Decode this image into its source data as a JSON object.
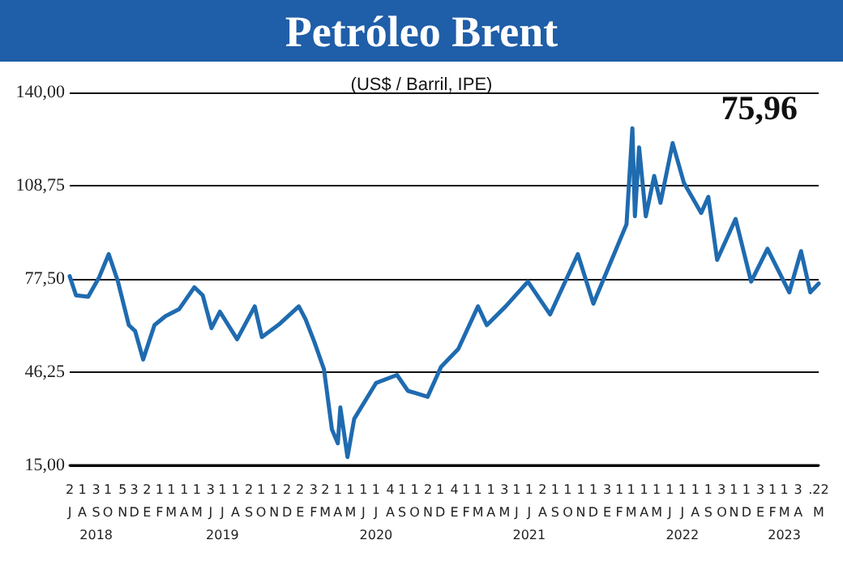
{
  "chart_data": {
    "type": "line",
    "title": "Petróleo Brent",
    "subtitle": "(US$ / Barril, IPE)",
    "annotations": [
      "75,96"
    ],
    "x": [
      "2018-07-02",
      "2018-07-17",
      "2018-08-15",
      "2018-09-10",
      "2018-10-03",
      "2018-10-25",
      "2018-11-20",
      "2018-12-05",
      "2018-12-24",
      "2019-01-20",
      "2019-02-15",
      "2019-03-20",
      "2019-04-25",
      "2019-05-15",
      "2019-06-05",
      "2019-06-25",
      "2019-08-05",
      "2019-09-16",
      "2019-10-03",
      "2019-11-15",
      "2019-12-30",
      "2020-01-15",
      "2020-02-05",
      "2020-02-28",
      "2020-03-18",
      "2020-04-01",
      "2020-04-07",
      "2020-04-24",
      "2020-05-10",
      "2020-07-01",
      "2020-08-20",
      "2020-09-15",
      "2020-11-01",
      "2020-12-03",
      "2021-01-13",
      "2021-03-01",
      "2021-03-22",
      "2021-05-06",
      "2021-06-28",
      "2021-08-20",
      "2021-10-25",
      "2021-12-01",
      "2022-02-18",
      "2022-03-04",
      "2022-03-10",
      "2022-03-20",
      "2022-04-05",
      "2022-04-25",
      "2022-05-10",
      "2022-06-08",
      "2022-07-05",
      "2022-08-15",
      "2022-09-01",
      "2022-09-22",
      "2022-11-05",
      "2022-12-12",
      "2023-01-20",
      "2023-03-13",
      "2023-04-10",
      "2023-05-02",
      "2023-05-22"
    ],
    "series": [
      {
        "color": "#1f6bb0",
        "values": [
          78.4,
          72,
          71.5,
          78,
          85.8,
          76.6,
          62,
          60,
          50.5,
          62,
          65,
          67.4,
          74.7,
          72,
          61,
          66.5,
          57.3,
          68.3,
          58,
          62.5,
          68.3,
          64,
          56.4,
          47.2,
          27,
          22.4,
          34.4,
          17.8,
          30.6,
          42.6,
          45.3,
          40,
          38,
          48,
          54,
          68.3,
          62,
          68.3,
          76.6,
          65.6,
          85.8,
          69.2,
          95.8,
          128,
          98.5,
          121.6,
          98.5,
          112,
          103,
          123,
          109.6,
          99.6,
          105,
          83.9,
          97.6,
          76.6,
          87.6,
          73,
          86.8,
          73,
          75.96
        ]
      }
    ],
    "xlim": [
      "2018-07-02",
      "2023-05-22"
    ],
    "xticks": [
      {
        "value": "2018-07-02",
        "label": "2\nJ"
      },
      {
        "value": "2018-08-01",
        "label": "1\nA"
      },
      {
        "value": "2018-09-03",
        "label": "3\nS\n2018"
      },
      {
        "value": "2018-10-01",
        "label": "1\nO"
      },
      {
        "value": "2018-11-05",
        "label": "5\nN"
      },
      {
        "value": "2018-12-03",
        "label": "3\nD"
      },
      {
        "value": "2019-01-02",
        "label": "2\nE"
      },
      {
        "value": "2019-02-01",
        "label": "1\nF"
      },
      {
        "value": "2019-03-01",
        "label": "1\nM"
      },
      {
        "value": "2019-04-01",
        "label": "1\nA"
      },
      {
        "value": "2019-05-01",
        "label": "1\nM"
      },
      {
        "value": "2019-06-03",
        "label": "3\nJ"
      },
      {
        "value": "2019-07-01",
        "label": "1\nJ\n2019"
      },
      {
        "value": "2019-08-01",
        "label": "1\nA"
      },
      {
        "value": "2019-09-02",
        "label": "2\nS"
      },
      {
        "value": "2019-10-01",
        "label": "1\nO"
      },
      {
        "value": "2019-11-01",
        "label": "1\nN"
      },
      {
        "value": "2019-12-02",
        "label": "2\nD"
      },
      {
        "value": "2020-01-02",
        "label": "2\nE"
      },
      {
        "value": "2020-02-03",
        "label": "3\nF"
      },
      {
        "value": "2020-03-02",
        "label": "2\nM"
      },
      {
        "value": "2020-04-01",
        "label": "1\nA"
      },
      {
        "value": "2020-05-01",
        "label": "1\nM"
      },
      {
        "value": "2020-06-01",
        "label": "1\nJ"
      },
      {
        "value": "2020-07-01",
        "label": "1\nJ\n2020"
      },
      {
        "value": "2020-08-04",
        "label": "4\nA"
      },
      {
        "value": "2020-09-01",
        "label": "1\nS"
      },
      {
        "value": "2020-10-01",
        "label": "1\nO"
      },
      {
        "value": "2020-11-02",
        "label": "2\nN"
      },
      {
        "value": "2020-12-01",
        "label": "1\nD"
      },
      {
        "value": "2021-01-04",
        "label": "4\nE"
      },
      {
        "value": "2021-02-01",
        "label": "1\nF"
      },
      {
        "value": "2021-03-01",
        "label": "1\nM"
      },
      {
        "value": "2021-04-01",
        "label": "1\nA"
      },
      {
        "value": "2021-05-03",
        "label": "3\nM"
      },
      {
        "value": "2021-06-01",
        "label": "1\nJ"
      },
      {
        "value": "2021-07-01",
        "label": "1\nJ\n2021"
      },
      {
        "value": "2021-08-02",
        "label": "2\nA"
      },
      {
        "value": "2021-09-01",
        "label": "1\nS"
      },
      {
        "value": "2021-10-01",
        "label": "1\nO"
      },
      {
        "value": "2021-11-01",
        "label": "1\nN"
      },
      {
        "value": "2021-12-01",
        "label": "1\nD"
      },
      {
        "value": "2022-01-03",
        "label": "3\nE"
      },
      {
        "value": "2022-02-01",
        "label": "1\nF"
      },
      {
        "value": "2022-03-01",
        "label": "1\nM"
      },
      {
        "value": "2022-04-01",
        "label": "1\nA"
      },
      {
        "value": "2022-05-01",
        "label": "1\nM"
      },
      {
        "value": "2022-06-01",
        "label": "1\nJ"
      },
      {
        "value": "2022-07-01",
        "label": "1\nJ\n2022"
      },
      {
        "value": "2022-08-01",
        "label": "1\nA"
      },
      {
        "value": "2022-09-01",
        "label": "1\nS"
      },
      {
        "value": "2022-10-03",
        "label": "3\nO"
      },
      {
        "value": "2022-11-01",
        "label": "1\nN"
      },
      {
        "value": "2022-12-01",
        "label": "1\nD"
      },
      {
        "value": "2023-01-03",
        "label": "3\nE"
      },
      {
        "value": "2023-02-01",
        "label": "1\nF"
      },
      {
        "value": "2023-03-01",
        "label": "1\nM\n2023"
      },
      {
        "value": "2023-04-03",
        "label": "3\nA"
      },
      {
        "value": "2023-05-22",
        "label": ".22\nM"
      }
    ],
    "ylim": [
      15,
      140
    ],
    "yticks": [
      {
        "value": 15,
        "label": "15,00"
      },
      {
        "value": 46.25,
        "label": "46,25"
      },
      {
        "value": 77.5,
        "label": "77,50"
      },
      {
        "value": 108.75,
        "label": "108,75"
      },
      {
        "value": 140,
        "label": "140,00"
      }
    ],
    "grid": "y",
    "marker": "none",
    "line_style": "solid"
  }
}
